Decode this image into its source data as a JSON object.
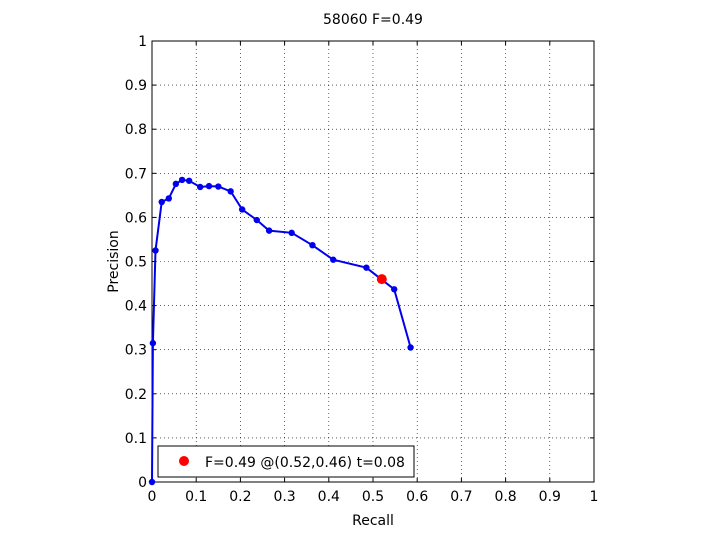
{
  "chart_data": {
    "type": "line",
    "title": "58060 F=0.49",
    "xlabel": "Recall",
    "ylabel": "Precision",
    "xlim": [
      0,
      1
    ],
    "ylim": [
      0,
      1
    ],
    "xticks": [
      0,
      0.1,
      0.2,
      0.3,
      0.4,
      0.5,
      0.6,
      0.7,
      0.8,
      0.9,
      1
    ],
    "yticks": [
      0,
      0.1,
      0.2,
      0.3,
      0.4,
      0.5,
      0.6,
      0.7,
      0.8,
      0.9,
      1
    ],
    "xtick_labels": [
      "0",
      "0.1",
      "0.2",
      "0.3",
      "0.4",
      "0.5",
      "0.6",
      "0.7",
      "0.8",
      "0.9",
      "1"
    ],
    "ytick_labels": [
      "0",
      "0.1",
      "0.2",
      "0.3",
      "0.4",
      "0.5",
      "0.6",
      "0.7",
      "0.8",
      "0.9",
      "1"
    ],
    "grid": true,
    "grid_style": "dotted",
    "series": [
      {
        "color": "#0000ee",
        "marker": "circle",
        "points": [
          [
            0.0,
            0.0
          ],
          [
            0.002,
            0.315
          ],
          [
            0.008,
            0.525
          ],
          [
            0.022,
            0.635
          ],
          [
            0.038,
            0.643
          ],
          [
            0.054,
            0.676
          ],
          [
            0.068,
            0.685
          ],
          [
            0.084,
            0.683
          ],
          [
            0.109,
            0.669
          ],
          [
            0.129,
            0.671
          ],
          [
            0.15,
            0.67
          ],
          [
            0.178,
            0.659
          ],
          [
            0.204,
            0.618
          ],
          [
            0.237,
            0.594
          ],
          [
            0.265,
            0.57
          ],
          [
            0.316,
            0.565
          ],
          [
            0.363,
            0.537
          ],
          [
            0.41,
            0.504
          ],
          [
            0.485,
            0.486
          ],
          [
            0.548,
            0.437
          ],
          [
            0.585,
            0.305
          ]
        ]
      }
    ],
    "highlight": {
      "x": 0.52,
      "y": 0.46,
      "color": "#ff0000"
    },
    "legend": {
      "position": "bottom-left",
      "text": "F=0.49 @(0.52,0.46) t=0.08"
    }
  }
}
